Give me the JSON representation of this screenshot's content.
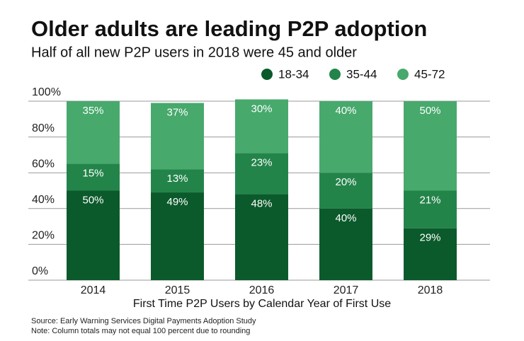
{
  "chart_data": {
    "type": "stacked_bar",
    "title": "Older adults are leading P2P adoption",
    "subtitle": "Half of all new P2P users in 2018 were 45 and older",
    "x_label": "First Time P2P Users by Calendar Year of First Use",
    "source": "Source: Early Warning Services Digital Payments Adoption Study",
    "note": "Note: Column totals may not equal 100 percent due to rounding",
    "categories": [
      "2014",
      "2015",
      "2016",
      "2017",
      "2018"
    ],
    "series": [
      {
        "name": "18-34",
        "color": "#0b5a2b",
        "values": [
          50,
          49,
          48,
          40,
          29
        ],
        "value_labels": [
          "50%",
          "49%",
          "48%",
          "40%",
          "29%"
        ]
      },
      {
        "name": "35-44",
        "color": "#23844a",
        "values": [
          15,
          13,
          23,
          20,
          21
        ],
        "value_labels": [
          "15%",
          "13%",
          "23%",
          "20%",
          "21%"
        ]
      },
      {
        "name": "45-72",
        "color": "#47a96c",
        "values": [
          35,
          37,
          30,
          40,
          50
        ],
        "value_labels": [
          "35%",
          "37%",
          "30%",
          "40%",
          "50%"
        ]
      }
    ],
    "ylim": [
      0,
      100
    ],
    "yticks": [
      {
        "value": 0,
        "label": "0%"
      },
      {
        "value": 20,
        "label": "20%"
      },
      {
        "value": 40,
        "label": "40%"
      },
      {
        "value": 60,
        "label": "60%"
      },
      {
        "value": 80,
        "label": "80%"
      },
      {
        "value": 100,
        "label": "100%"
      }
    ],
    "grid": true,
    "legend_position": "top-right"
  }
}
